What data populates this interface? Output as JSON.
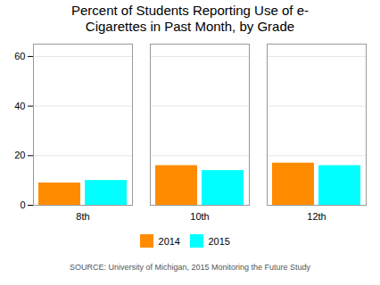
{
  "chart_data": {
    "type": "bar",
    "title": "Percent of Students Reporting Use of e-\nCigarettes in Past Month, by Grade",
    "categories": [
      "8th",
      "10th",
      "12th"
    ],
    "series": [
      {
        "name": "2014",
        "color": "#FF8C00",
        "values": [
          9,
          16,
          17
        ]
      },
      {
        "name": "2015",
        "color": "#00FFFF",
        "values": [
          10,
          14,
          16
        ]
      }
    ],
    "ylim": [
      0,
      65
    ],
    "yticks": [
      0,
      20,
      40,
      60
    ],
    "grid": true,
    "legend": "bottom",
    "annotations": [
      "SOURCE: University of Michigan, 2015 Monitoring the Future Study"
    ]
  }
}
